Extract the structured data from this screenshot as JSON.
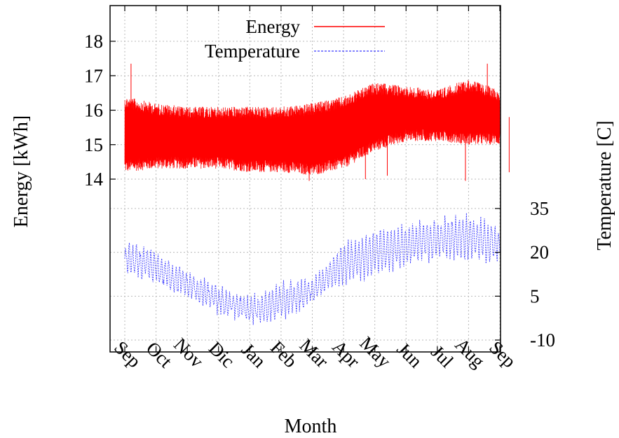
{
  "chart_data": {
    "type": "line",
    "xlabel": "Month",
    "ylabel_left": "Energy [kWh]",
    "ylabel_right": "Temperature [C]",
    "x_ticks": [
      "Sep",
      "Oct",
      "Nov",
      "Dic",
      "Jan",
      "Feb",
      "Mar",
      "Apr",
      "May",
      "Jun",
      "Jul",
      "Aug",
      "Sep"
    ],
    "y_left_ticks": [
      "14",
      "15",
      "16",
      "17",
      "18"
    ],
    "y_right_ticks": [
      "-10",
      "5",
      "20",
      "35"
    ],
    "energy_ylim": [
      14,
      18
    ],
    "temperature_ylim": [
      -10,
      35
    ],
    "legend": {
      "position": "top-center"
    },
    "grid": true,
    "series": [
      {
        "name": "Energy",
        "color": "#ff0000",
        "style": "solid",
        "axis": "left",
        "monthly_low": [
          14.2,
          14.3,
          14.3,
          14.3,
          14.2,
          14.2,
          14.1,
          14.3,
          14.8,
          15.1,
          15.1,
          15.0,
          15.0
        ],
        "monthly_high": [
          16.4,
          16.2,
          16.1,
          16.1,
          16.1,
          16.1,
          16.2,
          16.4,
          16.8,
          16.7,
          16.6,
          16.9,
          16.6
        ],
        "spikes": [
          [
            0.2,
            17.35
          ],
          [
            5.9,
            13.95
          ],
          [
            7.7,
            14.0
          ],
          [
            8.4,
            14.1
          ],
          [
            10.9,
            13.95
          ],
          [
            11.6,
            17.35
          ],
          [
            12.3,
            14.2
          ]
        ]
      },
      {
        "name": "Temperature",
        "color": "#3a3aff",
        "style": "dashed",
        "axis": "right",
        "monthly_low": [
          12,
          8,
          4,
          -2,
          -5,
          -5,
          2,
          8,
          10,
          14,
          16,
          16,
          14
        ],
        "monthly_high": [
          24,
          21,
          14,
          9,
          5,
          11,
          11,
          25,
          29,
          31,
          33,
          35,
          30
        ]
      }
    ]
  }
}
